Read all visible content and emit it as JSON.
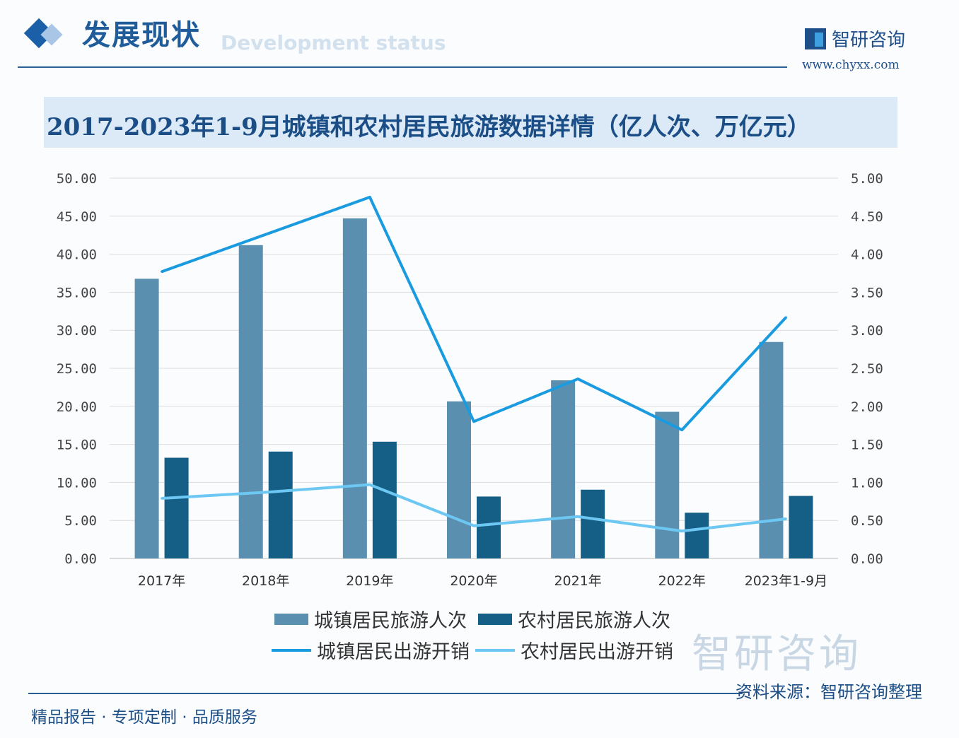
{
  "header": {
    "section_title": "发展现状",
    "section_subtitle": "Development status",
    "brand_name": "智研咨询",
    "brand_url": "www.chyxx.com"
  },
  "footer": {
    "source": "资料来源：智研咨询整理",
    "slogan": "精品报告 · 专项定制 · 品质服务",
    "watermark": "智研咨询"
  },
  "colors": {
    "urban_trips": "#5b8fb0",
    "rural_trips": "#155e86",
    "urban_spend": "#1a9be0",
    "rural_spend": "#6cc7f2"
  },
  "chart_data": {
    "type": "bar",
    "title": "2017-2023年1-9月城镇和农村居民旅游数据详情（亿人次、万亿元）",
    "categories": [
      "2017年",
      "2018年",
      "2019年",
      "2020年",
      "2021年",
      "2022年",
      "2023年1-9月"
    ],
    "y_left": {
      "range": [
        0,
        50
      ],
      "ticks": [
        "0.00",
        "5.00",
        "10.00",
        "15.00",
        "20.00",
        "25.00",
        "30.00",
        "35.00",
        "40.00",
        "45.00",
        "50.00"
      ]
    },
    "y_right": {
      "range": [
        0,
        5
      ],
      "ticks": [
        "0.00",
        "0.50",
        "1.00",
        "1.50",
        "2.00",
        "2.50",
        "3.00",
        "3.50",
        "4.00",
        "4.50",
        "5.00"
      ]
    },
    "grid": true,
    "legend_position": "bottom",
    "series": [
      {
        "name": "城镇居民旅游人次",
        "type": "bar",
        "axis": "left",
        "values": [
          36.77,
          41.19,
          44.71,
          20.65,
          23.42,
          19.28,
          28.46
        ]
      },
      {
        "name": "农村居民旅游人次",
        "type": "bar",
        "axis": "left",
        "values": [
          13.24,
          14.05,
          15.35,
          8.14,
          9.04,
          6.01,
          8.22
        ]
      },
      {
        "name": "城镇居民出游开销",
        "type": "line",
        "axis": "right",
        "values": [
          3.77,
          4.26,
          4.75,
          1.8,
          2.36,
          1.69,
          3.17
        ]
      },
      {
        "name": "农村居民出游开销",
        "type": "line",
        "axis": "right",
        "values": [
          0.79,
          0.87,
          0.97,
          0.43,
          0.55,
          0.36,
          0.52
        ]
      }
    ]
  }
}
